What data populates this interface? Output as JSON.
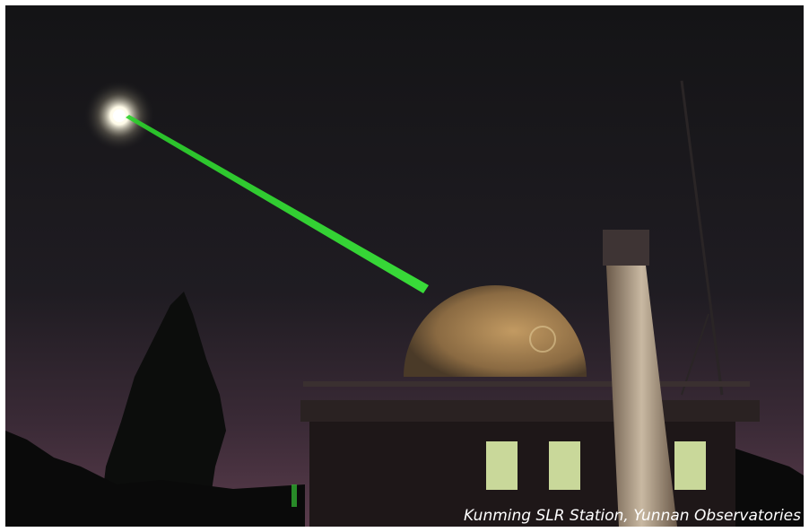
{
  "caption": "Kunming SLR Station, Yunnan Observatories"
}
